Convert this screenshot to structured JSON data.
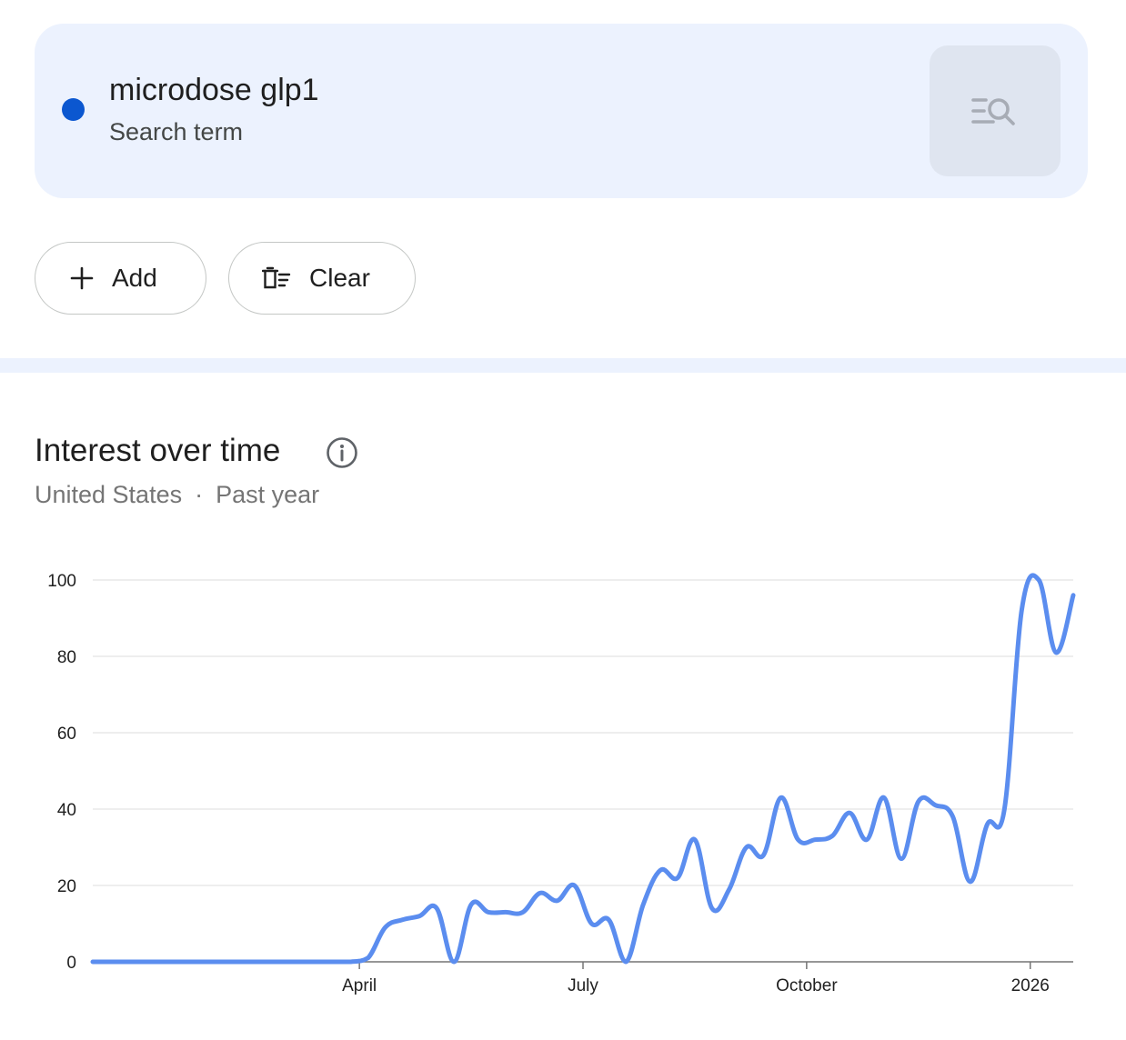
{
  "search_term": {
    "name": "microdose glp1",
    "type_label": "Search term",
    "color": "#0b57d0"
  },
  "actions": {
    "add_label": "Add",
    "add_icon": "plus-icon",
    "clear_label": "Clear",
    "clear_icon": "clear-list-icon",
    "refine_icon": "list-search-icon"
  },
  "section": {
    "title": "Interest over time",
    "info_icon": "info-icon",
    "region": "United States",
    "separator": "·",
    "period": "Past year"
  },
  "chart_data": {
    "type": "line",
    "ylim": [
      0,
      100
    ],
    "yticks": [
      0,
      20,
      40,
      60,
      80,
      100
    ],
    "ytick_labels": [
      "0",
      "20",
      "40",
      "60",
      "80",
      "100"
    ],
    "xticks": [
      {
        "label": "April",
        "t": 15.5
      },
      {
        "label": "July",
        "t": 28.5
      },
      {
        "label": "October",
        "t": 41.5
      },
      {
        "label": "2026",
        "t": 54.5
      }
    ],
    "x_range": [
      0,
      57
    ],
    "grid": true,
    "series": [
      {
        "color": "#5b8def",
        "values": [
          0,
          0,
          0,
          0,
          0,
          0,
          0,
          0,
          0,
          0,
          0,
          0,
          0,
          0,
          0,
          0,
          1,
          9,
          11,
          12,
          14,
          0,
          15,
          13,
          13,
          13,
          18,
          16,
          20,
          10,
          11,
          0,
          15,
          24,
          22,
          32,
          14,
          19,
          30,
          28,
          43,
          32,
          32,
          33,
          39,
          32,
          43,
          27,
          42,
          41,
          38,
          21,
          36,
          40,
          92,
          100,
          81,
          96
        ]
      }
    ]
  }
}
